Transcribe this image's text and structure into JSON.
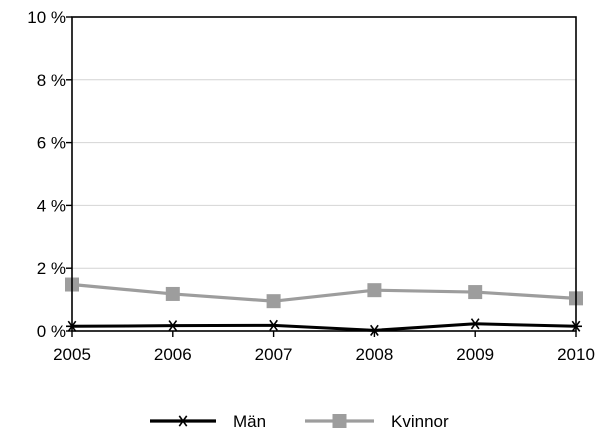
{
  "chart_data": {
    "type": "line",
    "x": [
      2005,
      2006,
      2007,
      2008,
      2009,
      2010
    ],
    "x_tick_labels": [
      "2005",
      "2006",
      "2007",
      "2008",
      "2009",
      "2010"
    ],
    "y_tick_values": [
      0,
      2,
      4,
      6,
      8,
      10
    ],
    "y_tick_labels": [
      "0 %",
      "2 %",
      "4 %",
      "6 %",
      "8 %",
      "10 %"
    ],
    "ylim": [
      0,
      10
    ],
    "grid": "horizontal",
    "legend_position": "bottom",
    "series": [
      {
        "name": "Män",
        "values": [
          0.15,
          0.17,
          0.18,
          0.02,
          0.23,
          0.15
        ],
        "color": "#000000",
        "marker": "asterisk"
      },
      {
        "name": "Kvinnor",
        "values": [
          1.48,
          1.18,
          0.95,
          1.3,
          1.24,
          1.04
        ],
        "color": "#9d9d9d",
        "marker": "square"
      }
    ]
  }
}
